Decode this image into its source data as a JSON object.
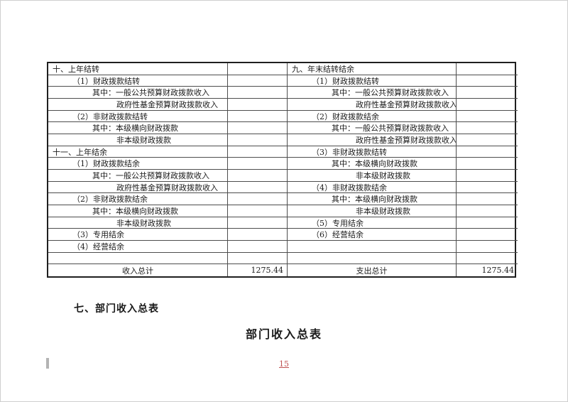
{
  "page": {
    "page_number": "15",
    "section_heading": "七、部门收入总表",
    "next_table_title": "部门收入总表"
  },
  "colors": {
    "page_number_red": "#bf5050",
    "table_border": "#1f1f1f"
  },
  "carryover_table": {
    "rows": [
      {
        "left_label": "十、上年结转",
        "left_value": "",
        "right_label": "九、年末结转结余",
        "right_value": ""
      },
      {
        "left_label": "（1）财政拨款结转",
        "left_value": "",
        "right_label": "（1）财政拨款结转",
        "right_value": ""
      },
      {
        "left_label": "其中：一般公共预算财政拨款收入",
        "left_value": "",
        "right_label": "其中：一般公共预算财政拨款收入",
        "right_value": ""
      },
      {
        "left_label": "政府性基金预算财政拨款收入",
        "left_value": "",
        "right_label": "政府性基金预算财政拨款收入",
        "right_value": ""
      },
      {
        "left_label": "（2）非财政拨款结转",
        "left_value": "",
        "right_label": "（2）财政拨款结余",
        "right_value": ""
      },
      {
        "left_label": "其中：本级横向财政拨款",
        "left_value": "",
        "right_label": "其中：一般公共预算财政拨款收入",
        "right_value": ""
      },
      {
        "left_label": "非本级财政拨款",
        "left_value": "",
        "right_label": "政府性基金预算财政拨款收入",
        "right_value": ""
      },
      {
        "left_label": "十一、上年结余",
        "left_value": "",
        "right_label": "（3）非财政拨款结转",
        "right_value": ""
      },
      {
        "left_label": "（1）财政拨款结余",
        "left_value": "",
        "right_label": "其中：本级横向财政拨款",
        "right_value": ""
      },
      {
        "left_label": "其中：一般公共预算财政拨款收入",
        "left_value": "",
        "right_label": "非本级财政拨款",
        "right_value": ""
      },
      {
        "left_label": "政府性基金预算财政拨款收入",
        "left_value": "",
        "right_label": "（4）非财政拨款结余",
        "right_value": ""
      },
      {
        "left_label": "（2）非财政拨款结余",
        "left_value": "",
        "right_label": "其中：本级横向财政拨款",
        "right_value": ""
      },
      {
        "left_label": "其中：本级横向财政拨款",
        "left_value": "",
        "right_label": "非本级财政拨款",
        "right_value": ""
      },
      {
        "left_label": "非本级财政拨款",
        "left_value": "",
        "right_label": "（5）专用结余",
        "right_value": ""
      },
      {
        "left_label": "（3）专用结余",
        "left_value": "",
        "right_label": "（6）经营结余",
        "right_value": ""
      },
      {
        "left_label": "（4）经营结余",
        "left_value": "",
        "right_label": "",
        "right_value": ""
      },
      {
        "left_label": "",
        "left_value": "",
        "right_label": "",
        "right_value": ""
      }
    ],
    "total_row": {
      "left_label": "收入总计",
      "left_value": "1275.44",
      "right_label": "支出总计",
      "right_value": "1275.44"
    }
  }
}
